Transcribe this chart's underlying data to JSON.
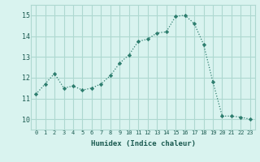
{
  "x": [
    0,
    1,
    2,
    3,
    4,
    5,
    6,
    7,
    8,
    9,
    10,
    11,
    12,
    13,
    14,
    15,
    16,
    17,
    18,
    19,
    20,
    21,
    22,
    23
  ],
  "y": [
    11.2,
    11.7,
    12.2,
    11.5,
    11.6,
    11.4,
    11.5,
    11.7,
    12.1,
    12.7,
    13.1,
    13.75,
    13.85,
    14.15,
    14.2,
    14.95,
    15.0,
    14.6,
    13.6,
    11.8,
    10.15,
    10.15,
    10.1,
    10.0
  ],
  "xlabel": "Humidex (Indice chaleur)",
  "xlim": [
    -0.5,
    23.5
  ],
  "ylim": [
    9.5,
    15.5
  ],
  "yticks": [
    10,
    11,
    12,
    13,
    14,
    15
  ],
  "xticks": [
    0,
    1,
    2,
    3,
    4,
    5,
    6,
    7,
    8,
    9,
    10,
    11,
    12,
    13,
    14,
    15,
    16,
    17,
    18,
    19,
    20,
    21,
    22,
    23
  ],
  "line_color": "#2d7d6e",
  "marker": "D",
  "marker_size": 2.2,
  "bg_color": "#d9f3ef",
  "grid_color": "#aed8d0"
}
